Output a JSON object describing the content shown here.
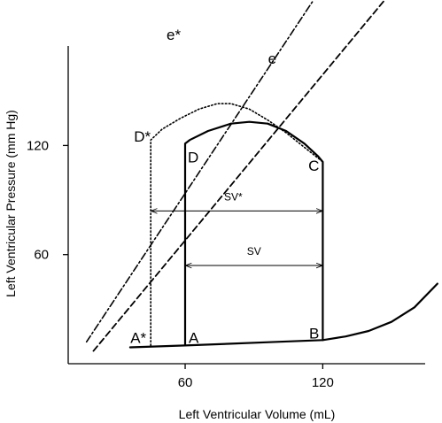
{
  "chart_data": {
    "type": "line",
    "title": "",
    "xlabel": "Left Ventricular Volume (mL)",
    "ylabel": "Left Ventricular Pressure (mm Hg)",
    "xlim": [
      9,
      172
    ],
    "ylim": [
      0,
      200
    ],
    "x_ticks": [
      60,
      120
    ],
    "y_ticks": [
      60,
      120
    ],
    "x_tick_labels": [
      "60",
      "120"
    ],
    "y_tick_labels": [
      "60",
      "120"
    ],
    "grid": false,
    "series": [
      {
        "style": "solid",
        "points": [
          [
            60,
            10
          ],
          [
            60,
            121
          ],
          [
            62,
            123
          ],
          [
            70,
            128
          ],
          [
            80,
            132
          ],
          [
            88,
            133
          ],
          [
            96,
            132
          ],
          [
            104,
            128
          ],
          [
            112,
            121
          ],
          [
            118,
            114
          ],
          [
            120,
            111
          ],
          [
            120,
            13
          ]
        ]
      },
      {
        "style": "dotted",
        "points": [
          [
            45,
            10
          ],
          [
            45,
            123
          ],
          [
            50,
            129
          ],
          [
            58,
            135
          ],
          [
            66,
            140
          ],
          [
            74,
            143
          ],
          [
            80,
            143
          ],
          [
            88,
            140
          ],
          [
            96,
            134
          ],
          [
            104,
            127
          ],
          [
            112,
            119
          ],
          [
            120,
            111
          ]
        ]
      },
      {
        "style": "solid",
        "points": [
          [
            36,
            9
          ],
          [
            60,
            10
          ],
          [
            80,
            11
          ],
          [
            100,
            12
          ],
          [
            120,
            13
          ],
          [
            130,
            15
          ],
          [
            140,
            18
          ],
          [
            150,
            23
          ],
          [
            160,
            31
          ],
          [
            170,
            44
          ]
        ]
      },
      {
        "style": "dashdot",
        "label": "e*",
        "points": [
          [
            17,
            12
          ],
          [
            116,
            200
          ]
        ]
      },
      {
        "style": "dashed",
        "label": "e",
        "points": [
          [
            20,
            7
          ],
          [
            147,
            200
          ]
        ]
      }
    ],
    "dimension_lines": [
      {
        "label": "SV*",
        "x_from": 45,
        "x_to": 120,
        "y": 84
      },
      {
        "label": "SV",
        "x_from": 60,
        "x_to": 120,
        "y": 54
      }
    ],
    "point_labels": [
      {
        "label": "A*",
        "x": 45,
        "y": 10
      },
      {
        "label": "A",
        "x": 60,
        "y": 10
      },
      {
        "label": "B",
        "x": 120,
        "y": 13
      },
      {
        "label": "C",
        "x": 120,
        "y": 111
      },
      {
        "label": "D",
        "x": 60,
        "y": 121
      },
      {
        "label": "D*",
        "x": 45,
        "y": 123
      }
    ],
    "line_labels": [
      {
        "label": "e*",
        "x": 55,
        "y": 178
      },
      {
        "label": "e",
        "x": 98,
        "y": 165
      }
    ]
  }
}
